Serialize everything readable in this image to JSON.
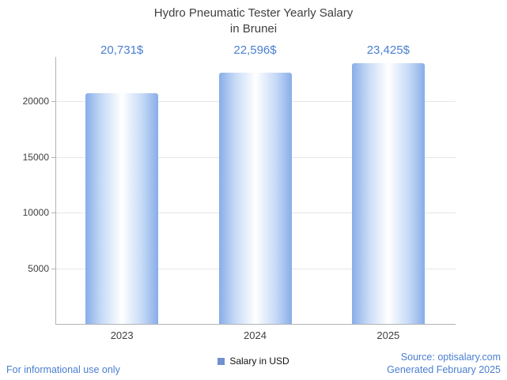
{
  "title": {
    "line1": "Hydro Pneumatic Tester Yearly Salary",
    "line2": "in Brunei"
  },
  "legend": {
    "label": "Salary in USD",
    "marker_color": "#7090ce"
  },
  "footer": {
    "left": "For informational use only",
    "source": "Source: optisalary.com",
    "generated": "Generated February 2025"
  },
  "colors": {
    "accent_text": "#4a7fd1",
    "bar_edge": "#88ade8",
    "bar_mid": "#c6daf6",
    "bar_center": "#ffffff",
    "axis": "#b3b3b3",
    "grid": "#e6e6e6",
    "title_text": "#3f3f3f"
  },
  "chart_data": {
    "type": "bar",
    "title": "Hydro Pneumatic Tester Yearly Salary in Brunei",
    "categories": [
      "2023",
      "2024",
      "2025"
    ],
    "values": [
      20731,
      22596,
      23425
    ],
    "value_labels": [
      "20,731$",
      "22,596$",
      "23,425$"
    ],
    "series_name": "Salary in USD",
    "xlabel": "",
    "ylabel": "",
    "yticks": [
      5000,
      10000,
      15000,
      20000
    ],
    "ylim": [
      0,
      24000
    ],
    "grid": true,
    "legend_position": "bottom"
  }
}
